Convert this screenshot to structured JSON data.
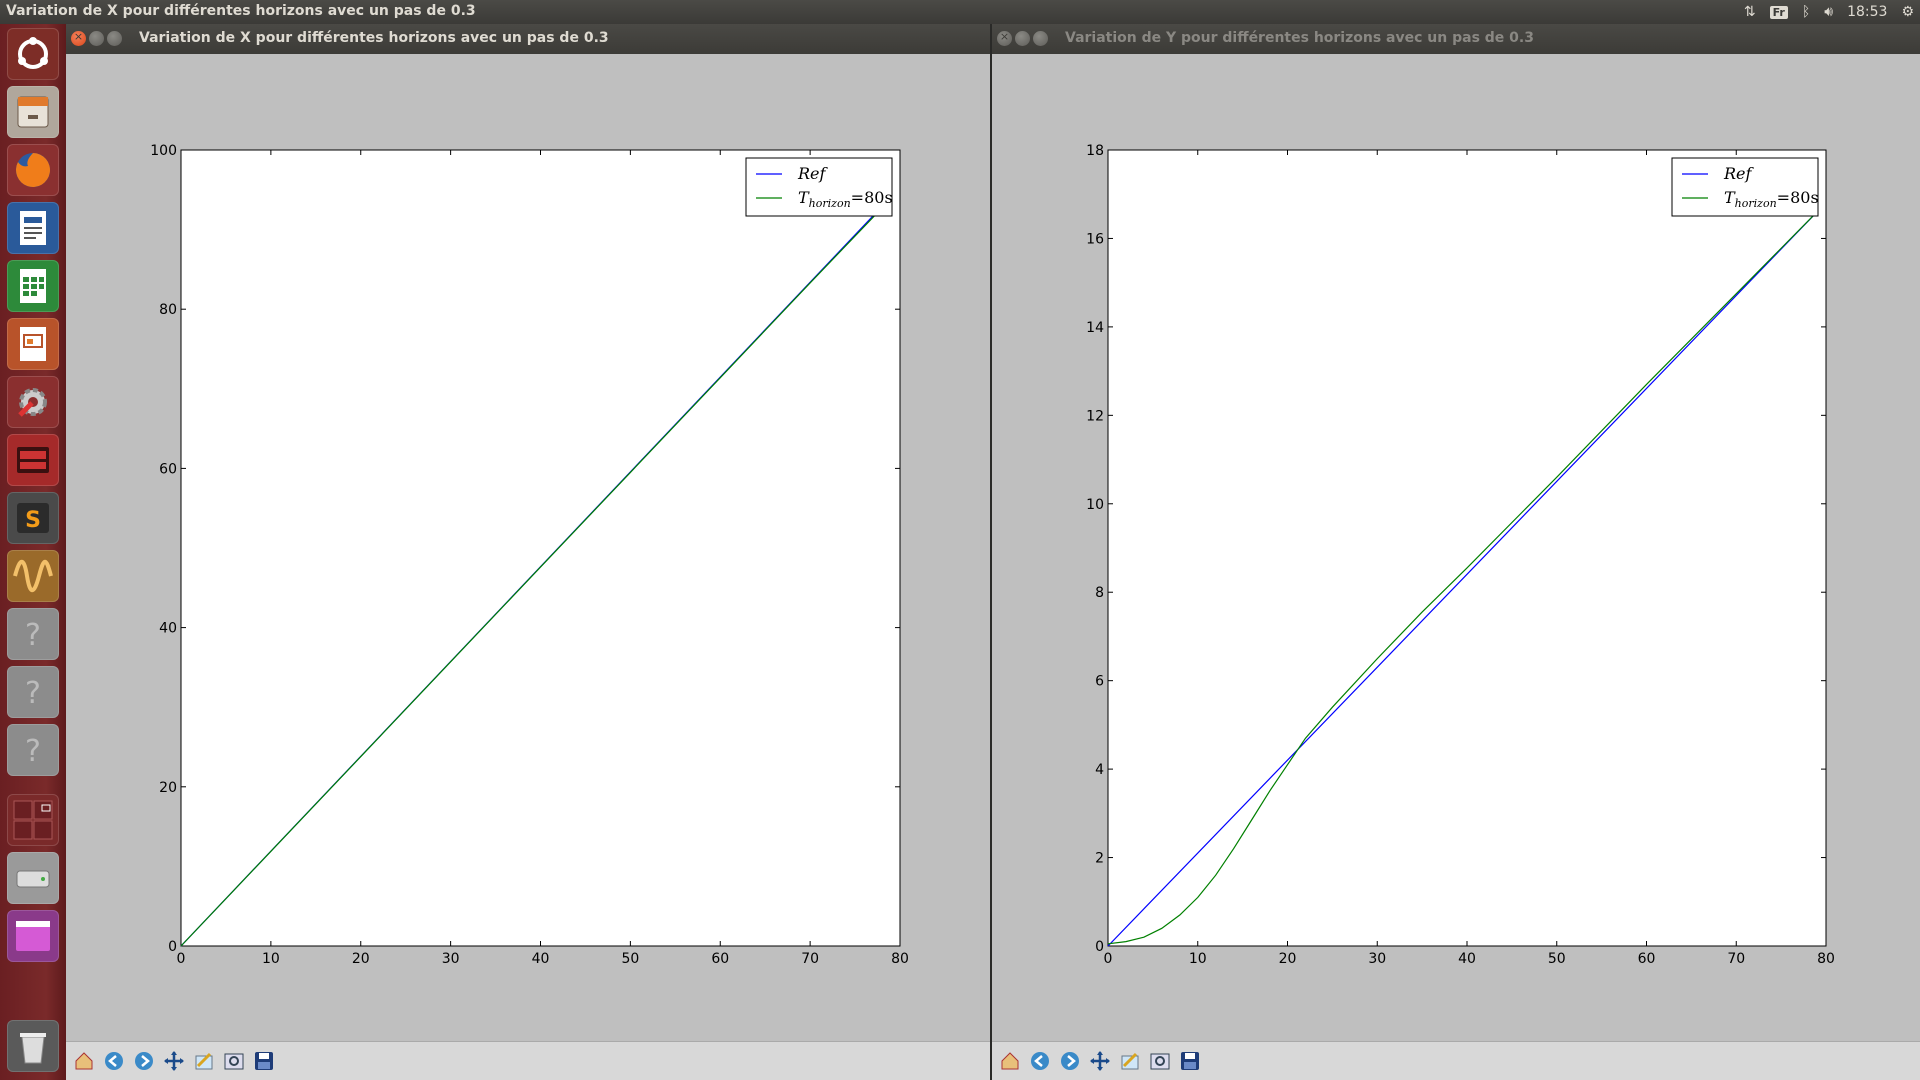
{
  "top_panel": {
    "title": "Variation de X pour différentes horizons avec un pas de 0.3",
    "keyboard_layout": "Fr",
    "clock": "18:53"
  },
  "launcher": {
    "items": [
      {
        "name": "ubuntu-dash",
        "icon": "ubuntu-logo-icon"
      },
      {
        "name": "files",
        "icon": "file-cabinet-icon"
      },
      {
        "name": "firefox",
        "icon": "firefox-icon"
      },
      {
        "name": "writer",
        "icon": "document-icon"
      },
      {
        "name": "calc",
        "icon": "spreadsheet-icon"
      },
      {
        "name": "impress",
        "icon": "presentation-icon"
      },
      {
        "name": "system-settings",
        "icon": "settings-wrench-icon"
      },
      {
        "name": "app-red",
        "icon": "red-app-icon"
      },
      {
        "name": "sublime-text",
        "icon": "sublime-icon"
      },
      {
        "name": "oscilloscope",
        "icon": "wave-icon"
      },
      {
        "name": "unknown-1",
        "icon": "question-icon"
      },
      {
        "name": "unknown-2",
        "icon": "question-icon"
      },
      {
        "name": "unknown-3",
        "icon": "question-icon"
      },
      {
        "name": "workspaces",
        "icon": "workspace-switcher-icon"
      },
      {
        "name": "drive",
        "icon": "drive-icon"
      },
      {
        "name": "window-app",
        "icon": "purple-window-icon"
      },
      {
        "name": "trash",
        "icon": "trash-icon"
      }
    ]
  },
  "windows": [
    {
      "title": "Variation de X pour différentes horizons avec un pas de 0.3",
      "active": true
    },
    {
      "title": "Variation de Y pour différentes horizons avec un pas de 0.3",
      "active": false
    }
  ],
  "toolbar_icons": [
    "home-icon",
    "back-icon",
    "forward-icon",
    "pan-icon",
    "configure-subplots-icon",
    "zoom-rect-icon",
    "save-icon"
  ],
  "chart_data": [
    {
      "type": "line",
      "title": "",
      "xlabel": "",
      "ylabel": "",
      "xlim": [
        0,
        80
      ],
      "ylim": [
        0,
        100
      ],
      "xticks": [
        0,
        10,
        20,
        30,
        40,
        50,
        60,
        70,
        80
      ],
      "yticks": [
        0,
        20,
        40,
        60,
        80,
        100
      ],
      "legend": "top-right",
      "grid": false,
      "series": [
        {
          "name": "Ref",
          "color": "#0000ff",
          "x": [
            0,
            78.5
          ],
          "y": [
            0,
            93.5
          ]
        },
        {
          "name": "T_horizon =80s",
          "color": "#008000",
          "x": [
            0,
            10,
            20,
            30,
            40,
            50,
            60,
            70,
            78.5
          ],
          "y": [
            0,
            11.9,
            23.8,
            35.7,
            47.6,
            59.5,
            71.4,
            83.3,
            93.3
          ]
        }
      ],
      "legend_labels": {
        "ref": "Ref",
        "t_base": "T",
        "t_sub": "horizon",
        "t_value": "=80s"
      }
    },
    {
      "type": "line",
      "title": "",
      "xlabel": "",
      "ylabel": "",
      "xlim": [
        0,
        80
      ],
      "ylim": [
        0,
        18
      ],
      "xticks": [
        0,
        10,
        20,
        30,
        40,
        50,
        60,
        70,
        80
      ],
      "yticks": [
        0,
        2,
        4,
        6,
        8,
        10,
        12,
        14,
        16,
        18
      ],
      "legend": "top-right",
      "grid": false,
      "series": [
        {
          "name": "Ref",
          "color": "#0000ff",
          "x": [
            0,
            79
          ],
          "y": [
            0,
            16.6
          ]
        },
        {
          "name": "T_horizon =80s",
          "color": "#008000",
          "x": [
            0,
            2,
            4,
            6,
            8,
            10,
            12,
            14,
            16,
            18,
            20,
            22,
            25,
            30,
            35,
            40,
            50,
            60,
            70,
            79
          ],
          "y": [
            0.05,
            0.1,
            0.2,
            0.4,
            0.7,
            1.1,
            1.6,
            2.2,
            2.85,
            3.5,
            4.1,
            4.7,
            5.4,
            6.5,
            7.55,
            8.55,
            10.6,
            12.7,
            14.75,
            16.6
          ]
        }
      ],
      "legend_labels": {
        "ref": "Ref",
        "t_base": "T",
        "t_sub": "horizon",
        "t_value": "=80s"
      }
    }
  ]
}
